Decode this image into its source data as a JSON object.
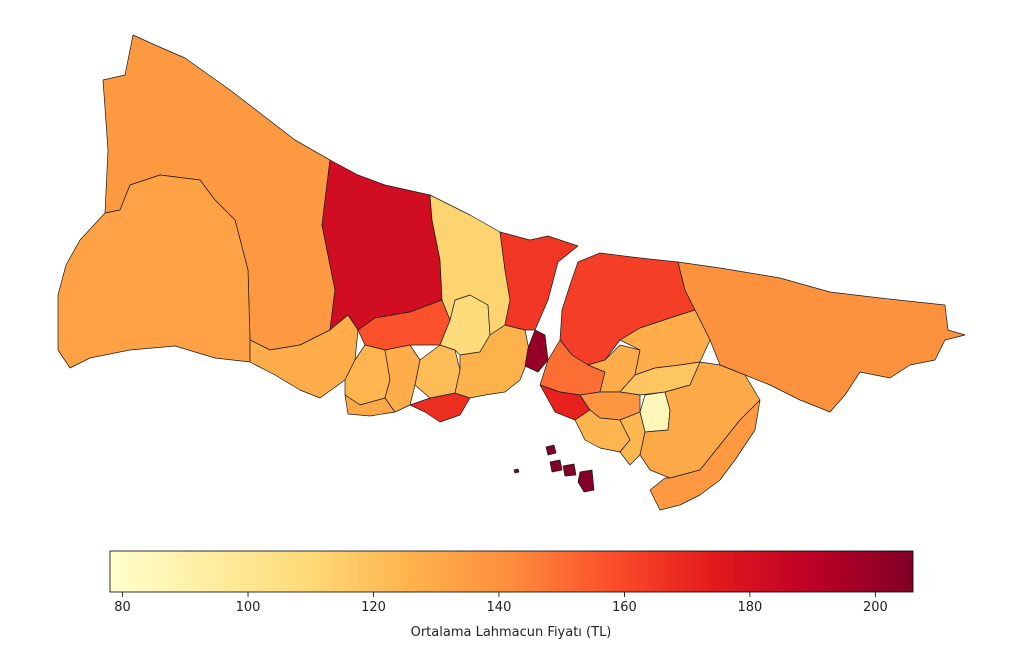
{
  "colorbar": {
    "label": "Ortalama Lahmacun Fiyatı (TL)",
    "min": 78,
    "max": 206,
    "ticks": [
      "80",
      "100",
      "120",
      "140",
      "160",
      "180",
      "200"
    ],
    "tick_values": [
      80,
      100,
      120,
      140,
      160,
      180,
      200
    ],
    "colormap": "YlOrRd",
    "stops": [
      "#ffffcc",
      "#ffeda0",
      "#fed976",
      "#feb24c",
      "#fd8d3c",
      "#fc4e2a",
      "#e31a1c",
      "#bd0026",
      "#800026"
    ]
  },
  "map": {
    "title": "",
    "region": "Istanbul districts",
    "districts": [
      {
        "id": "catalca",
        "value": 137
      },
      {
        "id": "silivri",
        "value": 133
      },
      {
        "id": "arnavutkoy",
        "value": 182
      },
      {
        "id": "basaksehir",
        "value": 128
      },
      {
        "id": "buyukcekmece",
        "value": 157
      },
      {
        "id": "esenyurt",
        "value": 125
      },
      {
        "id": "avcilar",
        "value": 130
      },
      {
        "id": "kucukcekmece",
        "value": 128
      },
      {
        "id": "bakirkoy",
        "value": 168
      },
      {
        "id": "bagcilar",
        "value": 122
      },
      {
        "id": "gaziosmanpasa",
        "value": 108
      },
      {
        "id": "eyup",
        "value": 112
      },
      {
        "id": "fatih",
        "value": 126
      },
      {
        "id": "sariyer",
        "value": 165
      },
      {
        "id": "besiktas",
        "value": 200
      },
      {
        "id": "beykoz",
        "value": 163
      },
      {
        "id": "sile",
        "value": 140
      },
      {
        "id": "uskudar",
        "value": 150
      },
      {
        "id": "kadikoy",
        "value": 172
      },
      {
        "id": "umraniye",
        "value": 128
      },
      {
        "id": "sancaktepe",
        "value": 118
      },
      {
        "id": "sultanbeyli",
        "value": 85
      },
      {
        "id": "cekmekoy",
        "value": 128
      },
      {
        "id": "atasehir",
        "value": 138
      },
      {
        "id": "maltepe",
        "value": 125
      },
      {
        "id": "kartal",
        "value": 124
      },
      {
        "id": "pendik",
        "value": 130
      },
      {
        "id": "tuzla",
        "value": 137
      },
      {
        "id": "adalar",
        "value": 205
      }
    ]
  }
}
